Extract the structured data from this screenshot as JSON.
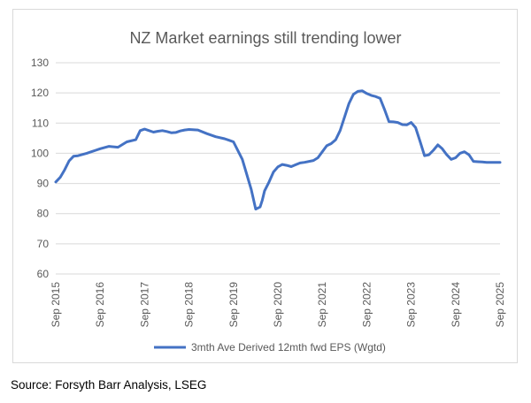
{
  "chart_data": {
    "type": "line",
    "title": "NZ Market earnings still trending lower",
    "xlabel": "",
    "ylabel": "",
    "ylim": [
      60,
      130
    ],
    "yticks": [
      60,
      70,
      80,
      90,
      100,
      110,
      120,
      130
    ],
    "xticks": [
      "Sep 2015",
      "Sep 2016",
      "Sep 2017",
      "Sep 2018",
      "Sep 2019",
      "Sep 2020",
      "Sep 2021",
      "Sep 2022",
      "Sep 2023",
      "Sep 2024",
      "Sep 2025"
    ],
    "xlim": [
      2015.0,
      2025.0
    ],
    "grid": true,
    "legend_position": "bottom",
    "series": [
      {
        "name": "3mth Ave Derived 12mth fwd EPS (Wgtd)",
        "color": "#4472c4",
        "x": [
          2015.0,
          2015.1,
          2015.2,
          2015.3,
          2015.4,
          2015.5,
          2015.6,
          2015.7,
          2015.8,
          2015.9,
          2016.0,
          2016.2,
          2016.4,
          2016.6,
          2016.8,
          2016.9,
          2017.0,
          2017.2,
          2017.3,
          2017.4,
          2017.5,
          2017.6,
          2017.7,
          2017.8,
          2017.9,
          2018.0,
          2018.2,
          2018.4,
          2018.6,
          2018.8,
          2018.9,
          2019.0,
          2019.2,
          2019.4,
          2019.5,
          2019.6,
          2019.65,
          2019.7,
          2019.8,
          2019.9,
          2020.0,
          2020.1,
          2020.2,
          2020.3,
          2020.4,
          2020.5,
          2020.6,
          2020.8,
          2020.9,
          2021.0,
          2021.1,
          2021.2,
          2021.3,
          2021.4,
          2021.5,
          2021.6,
          2021.7,
          2021.8,
          2021.9,
          2022.0,
          2022.1,
          2022.2,
          2022.3,
          2022.4,
          2022.5,
          2022.6,
          2022.7,
          2022.8,
          2022.9,
          2023.0,
          2023.1,
          2023.2,
          2023.3,
          2023.4,
          2023.5,
          2023.6,
          2023.7,
          2023.8,
          2023.9,
          2024.0,
          2024.1,
          2024.2,
          2024.3,
          2024.4,
          2024.5,
          2024.6,
          2024.7,
          2024.8,
          2024.9,
          2025.0
        ],
        "values": [
          90.5,
          92,
          94.5,
          97.5,
          99,
          99.2,
          99.6,
          100,
          100.5,
          101,
          101.5,
          102.3,
          102,
          103.8,
          104.5,
          107.5,
          108,
          107,
          107.3,
          107.5,
          107.2,
          106.8,
          106.9,
          107.4,
          107.7,
          107.9,
          107.7,
          106.5,
          105.5,
          104.8,
          104.3,
          103.8,
          98,
          88,
          81.5,
          82.2,
          84.5,
          87.5,
          90.5,
          93.8,
          95.5,
          96.3,
          96,
          95.6,
          96.2,
          96.8,
          97,
          97.6,
          98.5,
          100.5,
          102.5,
          103.2,
          104.5,
          107.5,
          112,
          116.5,
          119.5,
          120.5,
          120.7,
          119.8,
          119.2,
          118.8,
          118.2,
          114.5,
          110.5,
          110.4,
          110.2,
          109.5,
          109.4,
          110.2,
          108.5,
          104,
          99.2,
          99.5,
          101,
          102.8,
          101.5,
          99.5,
          98,
          98.5,
          100,
          100.5,
          99.5,
          97.3,
          97.2,
          97.1,
          97.0,
          97.0,
          97.0,
          97.0
        ]
      }
    ]
  },
  "source_text": "Source: Forsyth Barr Analysis, LSEG"
}
